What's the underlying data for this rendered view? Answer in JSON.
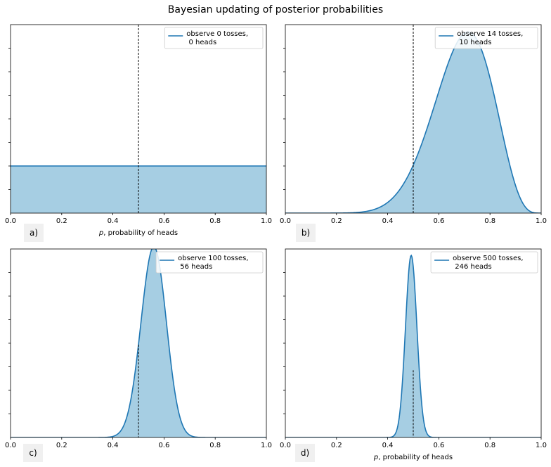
{
  "title": "Bayesian updating of posterior probabilities",
  "colors": {
    "line": "#1f77b4",
    "fill": "#a6cee3",
    "vline": "#000000",
    "axis": "#000000",
    "label_box": "#f0f0f0"
  },
  "chart_data": [
    {
      "type": "area",
      "panel_label": "a)",
      "legend": "observe 0 tosses,\n 0 heads",
      "legend_placement": "top-right",
      "tosses": 0,
      "heads": 0,
      "xlabel_prefix": "p",
      "xlabel_rest": ", probability of heads",
      "xlim": [
        0,
        1
      ],
      "ylim": [
        0,
        4
      ],
      "x_ticks": [
        "0.0",
        "0.2",
        "0.4",
        "0.6",
        "0.8",
        "1.0"
      ],
      "vline_x": 0.5,
      "vline_span": "full",
      "grid": false
    },
    {
      "type": "area",
      "panel_label": "b)",
      "legend": "observe 14 tosses,\n 10 heads",
      "legend_placement": "top-right",
      "tosses": 14,
      "heads": 10,
      "xlabel_prefix": "",
      "xlabel_rest": "",
      "xlim": [
        0,
        1
      ],
      "ylim": [
        0,
        3.6
      ],
      "x_ticks": [
        "0.0",
        "0.2",
        "0.4",
        "0.6",
        "0.8",
        "1.0"
      ],
      "vline_x": 0.5,
      "vline_span": "full",
      "grid": false
    },
    {
      "type": "area",
      "panel_label": "c)",
      "legend": "observe 100 tosses,\n 56 heads",
      "legend_placement": "top-right",
      "tosses": 100,
      "heads": 56,
      "xlabel_prefix": "",
      "xlabel_rest": "",
      "xlim": [
        0,
        1
      ],
      "ylim": [
        0,
        8
      ],
      "x_ticks": [
        "0.0",
        "0.2",
        "0.4",
        "0.6",
        "0.8",
        "1.0"
      ],
      "vline_x": 0.5,
      "vline_span": "curve",
      "grid": false
    },
    {
      "type": "area",
      "panel_label": "d)",
      "legend": "observe 500 tosses,\n 246 heads",
      "legend_placement": "top-right",
      "tosses": 500,
      "heads": 246,
      "xlabel_prefix": "p",
      "xlabel_rest": ", probability of heads",
      "xlim": [
        0,
        1
      ],
      "ylim": [
        0,
        18.5
      ],
      "x_ticks": [
        "0.0",
        "0.2",
        "0.4",
        "0.6",
        "0.8",
        "1.0"
      ],
      "vline_x": 0.5,
      "vline_span": "fixed",
      "vline_y": 6.6,
      "grid": false
    }
  ]
}
